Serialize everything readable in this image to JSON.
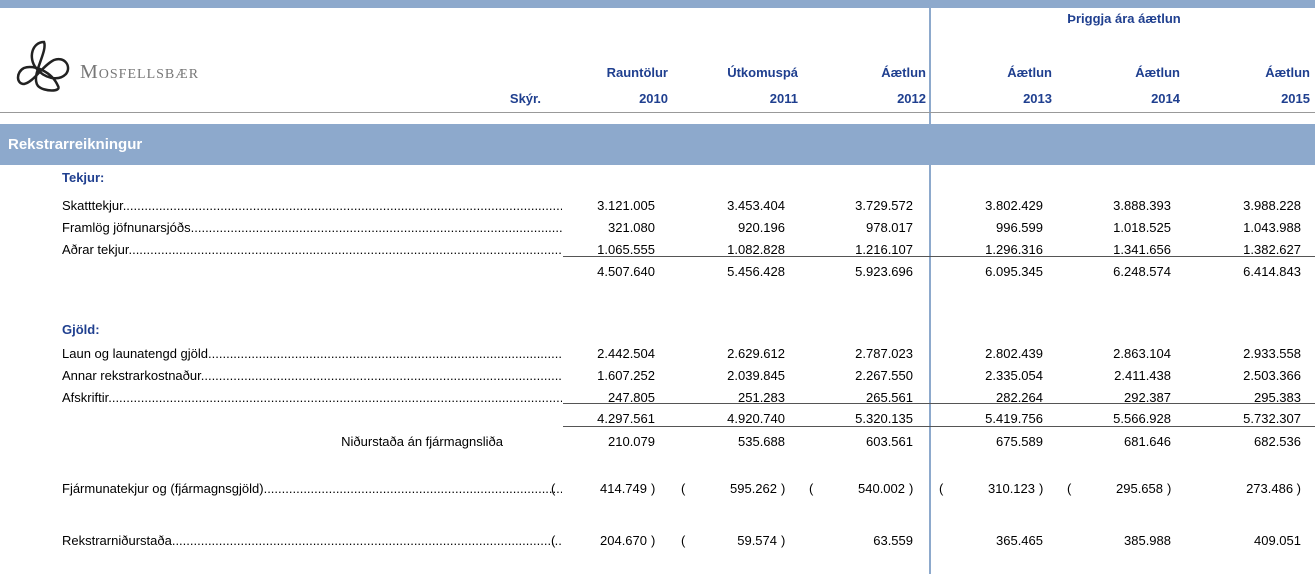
{
  "header": {
    "group_title": "Þriggja ára áætlun",
    "logo_text": "Mosfellsbær",
    "note_label": "Skýr.",
    "columns": [
      {
        "line1": "Rauntölur",
        "line2": "2010"
      },
      {
        "line1": "Útkomuspá",
        "line2": "2011"
      },
      {
        "line1": "Áætlun",
        "line2": "2012"
      },
      {
        "line1": "Áætlun",
        "line2": "2013"
      },
      {
        "line1": "Áætlun",
        "line2": "2014"
      },
      {
        "line1": "Áætlun",
        "line2": "2015"
      }
    ]
  },
  "section": {
    "title": "Rekstrarreikningur"
  },
  "rows": [
    {
      "kind": "heading",
      "label": "Tekjur:"
    },
    {
      "kind": "item",
      "label": "Skatttekjur..............................................................................................................................",
      "cells": [
        "3.121.005",
        "3.453.404",
        "3.729.572",
        "3.802.429",
        "3.888.393",
        "3.988.228"
      ]
    },
    {
      "kind": "item",
      "label": "Framlög jöfnunarsjóðs..............................................................................................................................",
      "cells": [
        "321.080",
        "920.196",
        "978.017",
        "996.599",
        "1.018.525",
        "1.043.988"
      ]
    },
    {
      "kind": "item",
      "label": "Aðrar tekjur..............................................................................................................................",
      "cells": [
        "1.065.555",
        "1.082.828",
        "1.216.107",
        "1.296.316",
        "1.341.656",
        "1.382.627"
      ]
    },
    {
      "kind": "total",
      "cells": [
        "4.507.640",
        "5.456.428",
        "5.923.696",
        "6.095.345",
        "6.248.574",
        "6.414.843"
      ]
    },
    {
      "kind": "heading",
      "label": "Gjöld:"
    },
    {
      "kind": "item",
      "label": "Laun og launatengd gjöld..............................................................................................................................",
      "cells": [
        "2.442.504",
        "2.629.612",
        "2.787.023",
        "2.802.439",
        "2.863.104",
        "2.933.558"
      ]
    },
    {
      "kind": "item",
      "label": "Annar rekstrarkostnaður..............................................................................................................................",
      "cells": [
        "1.607.252",
        "2.039.845",
        "2.267.550",
        "2.335.054",
        "2.411.438",
        "2.503.366"
      ]
    },
    {
      "kind": "item",
      "label": "Afskriftir..............................................................................................................................",
      "cells": [
        "247.805",
        "251.283",
        "265.561",
        "282.264",
        "292.387",
        "295.383"
      ]
    },
    {
      "kind": "total",
      "cells": [
        "4.297.561",
        "4.920.740",
        "5.320.135",
        "5.419.756",
        "5.566.928",
        "5.732.307"
      ]
    },
    {
      "kind": "subtotal",
      "label": "Niðurstaða án fjármagnsliða",
      "cells": [
        "210.079",
        "535.688",
        "603.561",
        "675.589",
        "681.646",
        "682.536"
      ]
    },
    {
      "kind": "item",
      "label": "Fjármunatekjur og (fjármagnsgjöld)..............................................................................................................................",
      "cells": [
        {
          "open": "(",
          "value": "414.749",
          "close": ")"
        },
        {
          "open": "(",
          "value": "595.262",
          "close": ")"
        },
        {
          "open": "(",
          "value": "540.002",
          "close": ")"
        },
        {
          "open": "(",
          "value": "310.123",
          "close": ")"
        },
        {
          "open": "(",
          "value": "295.658",
          "close": ")"
        },
        "273.486 )"
      ]
    },
    {
      "kind": "item",
      "label": "Rekstrarniðurstaða..............................................................................................................................",
      "cells": [
        {
          "open": "(",
          "value": "204.670",
          "close": ")"
        },
        {
          "open": "(",
          "value": "59.574",
          "close": ")"
        },
        "63.559",
        "365.465",
        "385.988",
        "409.051"
      ]
    }
  ]
}
